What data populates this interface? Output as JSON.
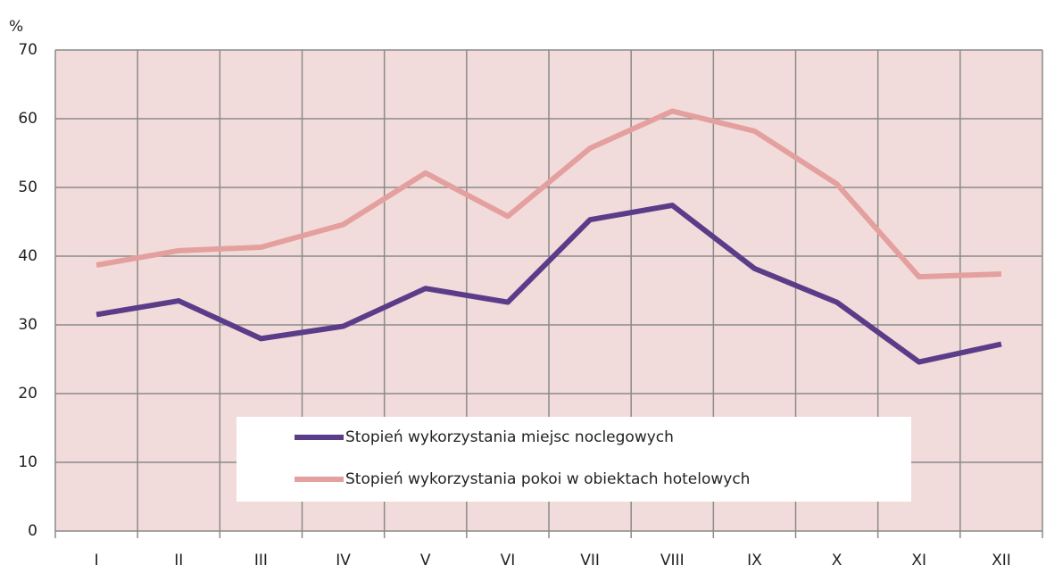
{
  "chart_data": {
    "type": "line",
    "y_axis_label": "%",
    "categories": [
      "I",
      "II",
      "III",
      "IV",
      "V",
      "VI",
      "VII",
      "VIII",
      "IX",
      "X",
      "XI",
      "XII"
    ],
    "series": [
      {
        "name": "Stopień wykorzystania miejsc noclegowych",
        "color": "#5b3c88",
        "values": [
          31.5,
          33.5,
          28.0,
          29.8,
          35.3,
          33.3,
          45.3,
          47.4,
          38.2,
          33.3,
          24.6,
          27.2
        ]
      },
      {
        "name": "Stopień wykorzystania pokoi w obiektach hotelowych",
        "color": "#e3a09e",
        "values": [
          38.7,
          40.8,
          41.3,
          44.6,
          52.1,
          45.8,
          55.7,
          61.1,
          58.2,
          50.5,
          37.0,
          37.4
        ]
      }
    ],
    "ylim": [
      0,
      70
    ],
    "yticks": [
      0,
      10,
      20,
      30,
      40,
      50,
      60,
      70
    ],
    "grid": true
  }
}
